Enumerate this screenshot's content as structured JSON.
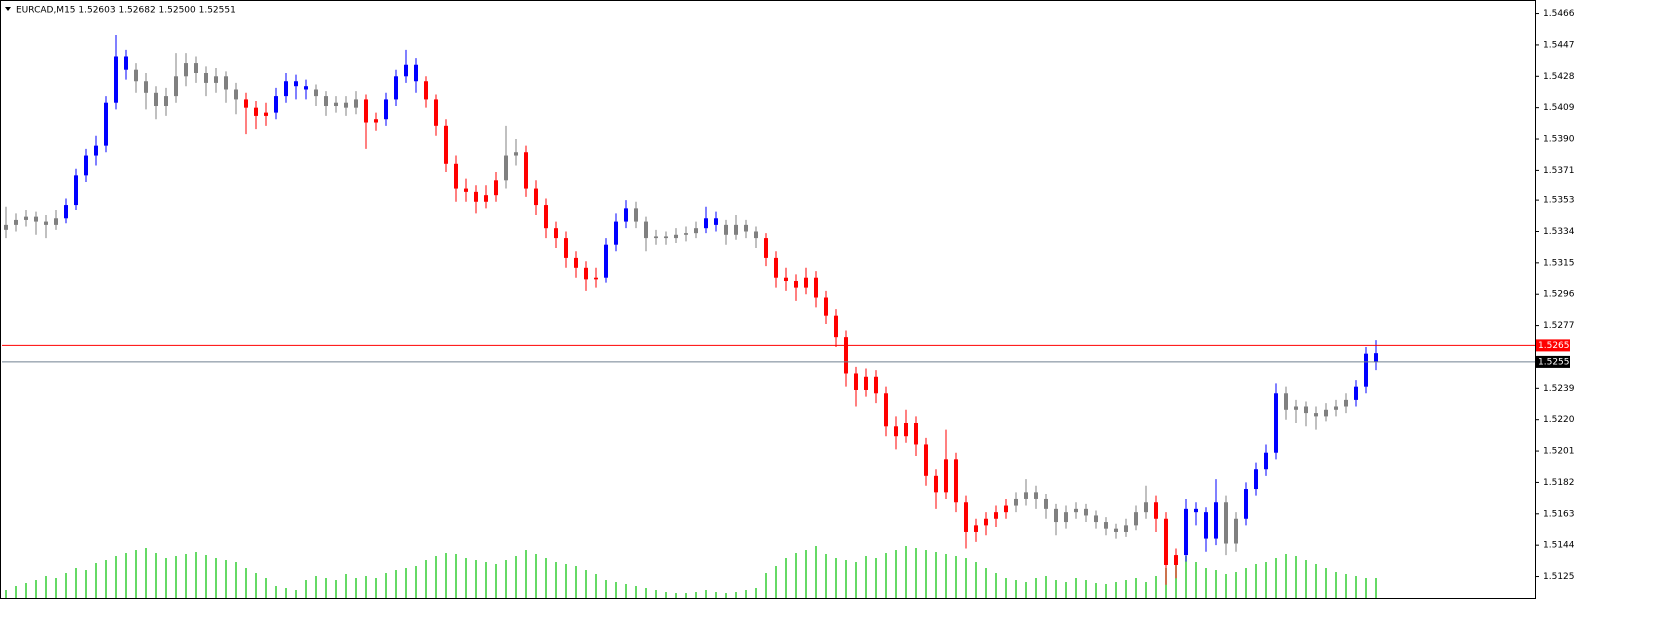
{
  "chart_data": {
    "type": "candlestick",
    "header": "EURCAD,M15  1.52603 1.52682 1.52500 1.52551",
    "ylim": [
      1.5112,
      1.5473
    ],
    "yticks": [
      1.5466,
      1.5447,
      1.5428,
      1.5409,
      {
        "value": 1.539,
        "label": "1.5390"
      },
      1.5371,
      1.5353,
      1.5334,
      1.5315,
      1.5296,
      1.5277,
      1.5239,
      {
        "value": 1.522,
        "label": "1.5220"
      },
      1.5201,
      1.5182,
      1.5163,
      1.5144,
      1.5125
    ],
    "ask": 1.5265,
    "ask_color": "#ff0000",
    "bid": 1.5255,
    "bid_color": "#708090",
    "volume_color": "#32cd32",
    "volume_lim": [
      0,
      100
    ],
    "segments": [
      {
        "color": "#808080",
        "ohlc": [
          [
            1.5335,
            1.5349,
            1.533,
            1.5338
          ],
          [
            1.5338,
            1.5345,
            1.5334,
            1.5341
          ],
          [
            1.5341,
            1.5347,
            1.5337,
            1.5343
          ],
          [
            1.5343,
            1.5346,
            1.5332,
            1.534
          ],
          [
            1.534,
            1.5344,
            1.533,
            1.5338
          ],
          [
            1.5338,
            1.5347,
            1.5335,
            1.5342
          ]
        ]
      },
      {
        "color": "#0000ff",
        "ohlc": [
          [
            1.5342,
            1.5354,
            1.5339,
            1.535
          ],
          [
            1.535,
            1.5372,
            1.5347,
            1.5368
          ],
          [
            1.5368,
            1.5384,
            1.5364,
            1.538
          ],
          [
            1.538,
            1.5392,
            1.5374,
            1.5386
          ],
          [
            1.5386,
            1.5416,
            1.5382,
            1.5412
          ],
          [
            1.5412,
            1.5453,
            1.5408,
            1.544
          ],
          [
            1.544,
            1.5444,
            1.5426,
            1.5432
          ]
        ]
      },
      {
        "color": "#808080",
        "ohlc": [
          [
            1.5432,
            1.5436,
            1.5418,
            1.5425
          ],
          [
            1.5425,
            1.543,
            1.5408,
            1.5418
          ],
          [
            1.5418,
            1.5422,
            1.5402,
            1.541
          ],
          [
            1.541,
            1.5421,
            1.5404,
            1.5416
          ],
          [
            1.5416,
            1.5442,
            1.5412,
            1.5428
          ],
          [
            1.5428,
            1.5442,
            1.5422,
            1.5436
          ],
          [
            1.5436,
            1.544,
            1.5424,
            1.543
          ],
          [
            1.543,
            1.5434,
            1.5416,
            1.5424
          ],
          [
            1.5424,
            1.5433,
            1.5418,
            1.5428
          ],
          [
            1.5428,
            1.5431,
            1.5412,
            1.542
          ],
          [
            1.542,
            1.5424,
            1.5405,
            1.5414
          ]
        ]
      },
      {
        "color": "#ff0000",
        "ohlc": [
          [
            1.5414,
            1.5418,
            1.5393,
            1.5409
          ],
          [
            1.5409,
            1.5413,
            1.5396,
            1.5404
          ],
          [
            1.5404,
            1.5412,
            1.5398,
            1.5406
          ]
        ]
      },
      {
        "color": "#0000ff",
        "ohlc": [
          [
            1.5406,
            1.5421,
            1.5402,
            1.5416
          ],
          [
            1.5416,
            1.543,
            1.5412,
            1.5425
          ],
          [
            1.5425,
            1.5429,
            1.5414,
            1.5422
          ],
          [
            1.5422,
            1.5426,
            1.5414,
            1.542
          ]
        ]
      },
      {
        "color": "#808080",
        "ohlc": [
          [
            1.542,
            1.5423,
            1.541,
            1.5416
          ],
          [
            1.5416,
            1.5419,
            1.5404,
            1.541
          ],
          [
            1.541,
            1.5416,
            1.5406,
            1.5412
          ],
          [
            1.5412,
            1.5416,
            1.5404,
            1.5409
          ],
          [
            1.5409,
            1.5419,
            1.5405,
            1.5414
          ]
        ]
      },
      {
        "color": "#ff0000",
        "ohlc": [
          [
            1.5414,
            1.5417,
            1.5384,
            1.54
          ],
          [
            1.54,
            1.5406,
            1.5395,
            1.5402
          ]
        ]
      },
      {
        "color": "#0000ff",
        "ohlc": [
          [
            1.5402,
            1.5418,
            1.5398,
            1.5414
          ],
          [
            1.5414,
            1.5432,
            1.541,
            1.5428
          ],
          [
            1.5428,
            1.5444,
            1.5424,
            1.5435
          ],
          [
            1.5435,
            1.5439,
            1.5418,
            1.5425
          ]
        ]
      },
      {
        "color": "#ff0000",
        "ohlc": [
          [
            1.5425,
            1.5428,
            1.5409,
            1.5414
          ],
          [
            1.5414,
            1.5417,
            1.5392,
            1.5398
          ],
          [
            1.5398,
            1.5402,
            1.537,
            1.5375
          ],
          [
            1.5375,
            1.538,
            1.5352,
            1.536
          ],
          [
            1.536,
            1.5366,
            1.5352,
            1.5358
          ],
          [
            1.5358,
            1.5362,
            1.5345,
            1.5352
          ],
          [
            1.5352,
            1.5362,
            1.5348,
            1.5356
          ],
          [
            1.5356,
            1.537,
            1.5352,
            1.5365
          ]
        ]
      },
      {
        "color": "#808080",
        "ohlc": [
          [
            1.5365,
            1.5398,
            1.536,
            1.538
          ],
          [
            1.538,
            1.539,
            1.5374,
            1.5382
          ]
        ]
      },
      {
        "color": "#ff0000",
        "ohlc": [
          [
            1.5382,
            1.5386,
            1.5355,
            1.536
          ],
          [
            1.536,
            1.5365,
            1.5344,
            1.535
          ],
          [
            1.535,
            1.5354,
            1.533,
            1.5336
          ],
          [
            1.5336,
            1.534,
            1.5324,
            1.533
          ],
          [
            1.533,
            1.5334,
            1.5312,
            1.5318
          ],
          [
            1.5318,
            1.5322,
            1.5306,
            1.5312
          ],
          [
            1.5312,
            1.5316,
            1.5298,
            1.5305
          ],
          [
            1.5305,
            1.5312,
            1.53,
            1.5306
          ]
        ]
      },
      {
        "color": "#0000ff",
        "ohlc": [
          [
            1.5306,
            1.533,
            1.5303,
            1.5326
          ],
          [
            1.5326,
            1.5345,
            1.5322,
            1.534
          ],
          [
            1.534,
            1.5353,
            1.5336,
            1.5348
          ]
        ]
      },
      {
        "color": "#808080",
        "ohlc": [
          [
            1.5348,
            1.5352,
            1.5336,
            1.534
          ],
          [
            1.534,
            1.5343,
            1.5322,
            1.533
          ],
          [
            1.533,
            1.5335,
            1.5326,
            1.5331
          ],
          [
            1.5331,
            1.5334,
            1.5326,
            1.533
          ],
          [
            1.533,
            1.5336,
            1.5327,
            1.5332
          ],
          [
            1.5332,
            1.5337,
            1.5328,
            1.5333
          ],
          [
            1.5333,
            1.534,
            1.533,
            1.5336
          ]
        ]
      },
      {
        "color": "#0000ff",
        "ohlc": [
          [
            1.5336,
            1.5349,
            1.5333,
            1.5342
          ],
          [
            1.5342,
            1.5346,
            1.5334,
            1.5338
          ]
        ]
      },
      {
        "color": "#808080",
        "ohlc": [
          [
            1.5338,
            1.5341,
            1.5326,
            1.5332
          ],
          [
            1.5332,
            1.5344,
            1.5329,
            1.5338
          ],
          [
            1.5338,
            1.5341,
            1.533,
            1.5334
          ],
          [
            1.5334,
            1.5337,
            1.5324,
            1.533
          ]
        ]
      },
      {
        "color": "#ff0000",
        "ohlc": [
          [
            1.533,
            1.5333,
            1.5313,
            1.5318
          ],
          [
            1.5318,
            1.5322,
            1.53,
            1.5306
          ],
          [
            1.5306,
            1.5312,
            1.5298,
            1.5304
          ],
          [
            1.5304,
            1.5308,
            1.5292,
            1.53
          ],
          [
            1.53,
            1.5312,
            1.5296,
            1.5306
          ],
          [
            1.5306,
            1.531,
            1.5288,
            1.5294
          ],
          [
            1.5294,
            1.5298,
            1.5278,
            1.5283
          ],
          [
            1.5283,
            1.5287,
            1.5264,
            1.527
          ],
          [
            1.527,
            1.5274,
            1.524,
            1.5248
          ],
          [
            1.5248,
            1.5252,
            1.5228,
            1.5238
          ],
          [
            1.5238,
            1.5251,
            1.5234,
            1.5246
          ],
          [
            1.5246,
            1.525,
            1.523,
            1.5236
          ],
          [
            1.5236,
            1.524,
            1.521,
            1.5216
          ],
          [
            1.5216,
            1.5222,
            1.5202,
            1.521
          ],
          [
            1.521,
            1.5226,
            1.5206,
            1.5218
          ],
          [
            1.5218,
            1.5222,
            1.5198,
            1.5205
          ],
          [
            1.5205,
            1.5209,
            1.518,
            1.5186
          ],
          [
            1.5186,
            1.519,
            1.5166,
            1.5176
          ],
          [
            1.5176,
            1.5214,
            1.5172,
            1.5196
          ],
          [
            1.5196,
            1.52,
            1.5164,
            1.517
          ],
          [
            1.517,
            1.5174,
            1.5142,
            1.5152
          ],
          [
            1.5152,
            1.516,
            1.5146,
            1.5156
          ],
          [
            1.5156,
            1.5164,
            1.515,
            1.516
          ],
          [
            1.516,
            1.5168,
            1.5155,
            1.5164
          ],
          [
            1.5164,
            1.5172,
            1.516,
            1.5168
          ]
        ]
      },
      {
        "color": "#808080",
        "ohlc": [
          [
            1.5168,
            1.5176,
            1.5164,
            1.5172
          ],
          [
            1.5172,
            1.5184,
            1.5168,
            1.5176
          ],
          [
            1.5176,
            1.518,
            1.5166,
            1.5172
          ],
          [
            1.5172,
            1.5175,
            1.516,
            1.5166
          ],
          [
            1.5166,
            1.5169,
            1.515,
            1.5158
          ],
          [
            1.5158,
            1.5168,
            1.5154,
            1.5164
          ],
          [
            1.5164,
            1.517,
            1.516,
            1.5166
          ],
          [
            1.5166,
            1.5169,
            1.5158,
            1.5162
          ],
          [
            1.5162,
            1.5165,
            1.5154,
            1.5158
          ],
          [
            1.5158,
            1.5161,
            1.515,
            1.5154
          ],
          [
            1.5154,
            1.5157,
            1.5148,
            1.5152
          ],
          [
            1.5152,
            1.516,
            1.5149,
            1.5156
          ],
          [
            1.5156,
            1.5168,
            1.5153,
            1.5164
          ],
          [
            1.5164,
            1.518,
            1.516,
            1.517
          ]
        ]
      },
      {
        "color": "#ff0000",
        "ohlc": [
          [
            1.517,
            1.5174,
            1.5152,
            1.516
          ],
          [
            1.516,
            1.5164,
            1.512,
            1.5132
          ],
          [
            1.5132,
            1.5142,
            1.5124,
            1.5138
          ]
        ]
      },
      {
        "color": "#0000ff",
        "ohlc": [
          [
            1.5138,
            1.5172,
            1.5134,
            1.5166
          ],
          [
            1.5166,
            1.517,
            1.5156,
            1.5164
          ],
          [
            1.5164,
            1.5167,
            1.514,
            1.5148
          ],
          [
            1.5148,
            1.5184,
            1.5144,
            1.517
          ]
        ]
      },
      {
        "color": "#808080",
        "ohlc": [
          [
            1.517,
            1.5174,
            1.5138,
            1.5145
          ],
          [
            1.5145,
            1.5164,
            1.514,
            1.516
          ]
        ]
      },
      {
        "color": "#0000ff",
        "ohlc": [
          [
            1.516,
            1.5182,
            1.5156,
            1.5178
          ],
          [
            1.5178,
            1.5194,
            1.5174,
            1.519
          ],
          [
            1.519,
            1.5205,
            1.5186,
            1.52
          ],
          [
            1.52,
            1.5242,
            1.5196,
            1.5236
          ]
        ]
      },
      {
        "color": "#808080",
        "ohlc": [
          [
            1.5236,
            1.524,
            1.522,
            1.5226
          ],
          [
            1.5226,
            1.5232,
            1.5218,
            1.5228
          ],
          [
            1.5228,
            1.5231,
            1.5216,
            1.5224
          ],
          [
            1.5224,
            1.5228,
            1.5214,
            1.5222
          ],
          [
            1.5222,
            1.523,
            1.5219,
            1.5226
          ],
          [
            1.5226,
            1.5232,
            1.5222,
            1.5228
          ],
          [
            1.5228,
            1.5236,
            1.5224,
            1.5232
          ]
        ]
      },
      {
        "color": "#0000ff",
        "ohlc": [
          [
            1.5232,
            1.5244,
            1.5228,
            1.524
          ],
          [
            1.524,
            1.5264,
            1.5236,
            1.526
          ],
          [
            1.52603,
            1.52682,
            1.525,
            1.52551
          ]
        ]
      }
    ],
    "volumes": [
      8,
      12,
      15,
      18,
      22,
      20,
      25,
      30,
      28,
      35,
      38,
      42,
      45,
      48,
      50,
      45,
      40,
      42,
      44,
      46,
      43,
      40,
      38,
      36,
      30,
      25,
      20,
      12,
      10,
      8,
      18,
      22,
      20,
      18,
      24,
      20,
      22,
      20,
      25,
      28,
      30,
      32,
      38,
      42,
      45,
      44,
      40,
      38,
      36,
      34,
      38,
      42,
      48,
      44,
      40,
      36,
      34,
      32,
      28,
      24,
      18,
      16,
      14,
      12,
      10,
      8,
      6,
      5,
      5,
      6,
      8,
      6,
      5,
      6,
      8,
      10,
      25,
      32,
      40,
      45,
      48,
      52,
      44,
      40,
      38,
      36,
      42,
      40,
      45,
      48,
      52,
      50,
      48,
      46,
      44,
      42,
      40,
      36,
      30,
      25,
      20,
      18,
      16,
      20,
      22,
      18,
      16,
      20,
      18,
      15,
      14,
      16,
      18,
      20,
      16,
      22,
      30,
      38,
      42,
      36,
      30,
      28,
      24,
      26,
      30,
      34,
      36,
      40,
      44,
      42,
      38,
      34,
      30,
      26,
      24,
      22,
      20,
      20
    ]
  }
}
